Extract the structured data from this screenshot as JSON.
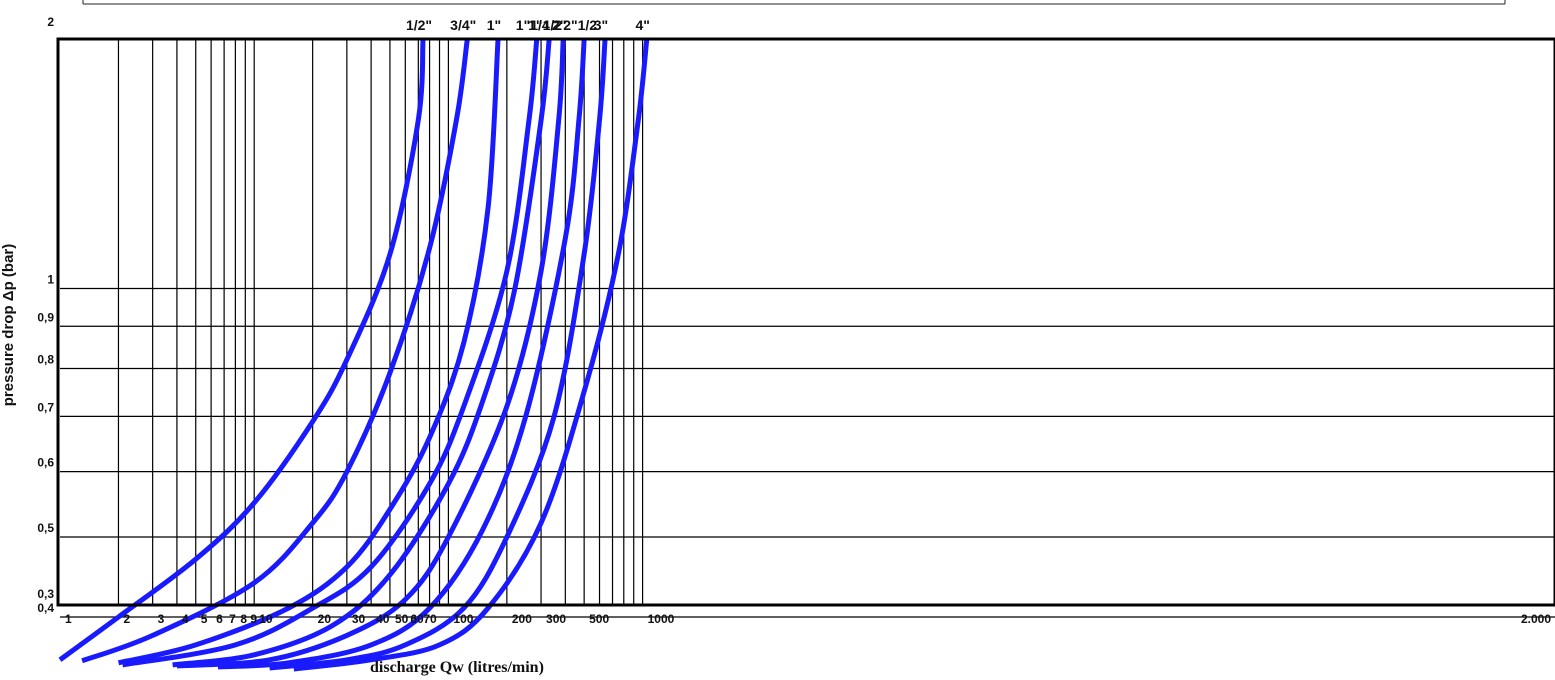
{
  "chart_data": {
    "type": "line",
    "xlabel": "discharge Qw (litres/min)",
    "ylabel": "pressure drop Δp (bar)",
    "x_scale": "log",
    "y_scale": "log",
    "xlim": [
      1,
      2000
    ],
    "ylim": [
      0.3,
      2
    ],
    "grid": true,
    "x_ticks": [
      {
        "v": 1,
        "label": "1"
      },
      {
        "v": 2,
        "label": "2"
      },
      {
        "v": 3,
        "label": "3"
      },
      {
        "v": 4,
        "label": "4"
      },
      {
        "v": 5,
        "label": "5"
      },
      {
        "v": 6,
        "label": "6"
      },
      {
        "v": 7,
        "label": "7"
      },
      {
        "v": 8,
        "label": "8"
      },
      {
        "v": 9,
        "label": "9"
      },
      {
        "v": 10,
        "label": "10"
      },
      {
        "v": 20,
        "label": "20"
      },
      {
        "v": 30,
        "label": "30"
      },
      {
        "v": 40,
        "label": "40"
      },
      {
        "v": 50,
        "label": "50"
      },
      {
        "v": 60,
        "label": "60"
      },
      {
        "v": 70,
        "label": "70"
      },
      {
        "v": 100,
        "label": "100"
      },
      {
        "v": 200,
        "label": "200"
      },
      {
        "v": 300,
        "label": "300"
      },
      {
        "v": 500,
        "label": "500"
      },
      {
        "v": 1000,
        "label": "1000"
      },
      {
        "v": 2000,
        "label": "2.000"
      }
    ],
    "x_gridlines": [
      2,
      3,
      4,
      5,
      6,
      7,
      8,
      9,
      10,
      20,
      30,
      40,
      50,
      60,
      70,
      80,
      90,
      100,
      200,
      300,
      400,
      500,
      600,
      700,
      800,
      900,
      1000
    ],
    "y_ticks": [
      {
        "v": 0.3,
        "label": "0,3"
      },
      {
        "v": 0.4,
        "label": "0,4"
      },
      {
        "v": 0.5,
        "label": "0,5"
      },
      {
        "v": 0.6,
        "label": "0,6"
      },
      {
        "v": 0.7,
        "label": "0,7"
      },
      {
        "v": 0.8,
        "label": "0,8"
      },
      {
        "v": 0.9,
        "label": "0,9"
      },
      {
        "v": 1,
        "label": "1"
      },
      {
        "v": 2,
        "label": "2"
      }
    ],
    "y_gridlines": [
      0.4,
      0.5,
      0.6,
      0.7,
      0.8,
      0.9,
      1
    ],
    "color": "#1a1aff",
    "series": [
      {
        "name": "1/2\"",
        "points": [
          [
            1,
            0.355
          ],
          [
            2,
            0.4
          ],
          [
            5,
            0.47
          ],
          [
            10,
            0.55
          ],
          [
            20,
            0.69
          ],
          [
            30,
            0.82
          ],
          [
            50,
            1.1
          ],
          [
            70,
            1.6
          ],
          [
            74,
            2.0
          ]
        ]
      },
      {
        "name": "3/4\"",
        "points": [
          [
            1.3,
            0.354
          ],
          [
            3,
            0.38
          ],
          [
            10,
            0.44
          ],
          [
            20,
            0.52
          ],
          [
            30,
            0.6
          ],
          [
            50,
            0.79
          ],
          [
            80,
            1.12
          ],
          [
            110,
            1.6
          ],
          [
            125,
            2.0
          ]
        ]
      },
      {
        "name": "1\"",
        "points": [
          [
            2,
            0.352
          ],
          [
            5,
            0.37
          ],
          [
            15,
            0.41
          ],
          [
            30,
            0.46
          ],
          [
            50,
            0.54
          ],
          [
            80,
            0.66
          ],
          [
            120,
            0.86
          ],
          [
            160,
            1.25
          ],
          [
            180,
            2.0
          ]
        ]
      },
      {
        "name": "1\"1/4",
        "points": [
          [
            2.1,
            0.35
          ],
          [
            8,
            0.37
          ],
          [
            20,
            0.41
          ],
          [
            40,
            0.46
          ],
          [
            80,
            0.58
          ],
          [
            120,
            0.72
          ],
          [
            200,
            1.05
          ],
          [
            260,
            1.6
          ],
          [
            285,
            2.0
          ]
        ]
      },
      {
        "name": "1\"1/2",
        "points": [
          [
            3.8,
            0.35
          ],
          [
            10,
            0.36
          ],
          [
            25,
            0.39
          ],
          [
            50,
            0.45
          ],
          [
            100,
            0.58
          ],
          [
            150,
            0.73
          ],
          [
            220,
            1.0
          ],
          [
            300,
            1.6
          ],
          [
            330,
            2.0
          ]
        ]
      },
      {
        "name": "2\"",
        "points": [
          [
            4,
            0.349
          ],
          [
            12,
            0.355
          ],
          [
            30,
            0.38
          ],
          [
            60,
            0.42
          ],
          [
            100,
            0.5
          ],
          [
            200,
            0.72
          ],
          [
            300,
            1.05
          ],
          [
            370,
            1.6
          ],
          [
            390,
            2.0
          ]
        ]
      },
      {
        "name": "2\"1/2",
        "points": [
          [
            6.5,
            0.348
          ],
          [
            15,
            0.352
          ],
          [
            40,
            0.37
          ],
          [
            80,
            0.41
          ],
          [
            150,
            0.51
          ],
          [
            250,
            0.7
          ],
          [
            400,
            1.15
          ],
          [
            470,
            1.6
          ],
          [
            500,
            2.0
          ]
        ]
      },
      {
        "name": "3\"",
        "points": [
          [
            12,
            0.347
          ],
          [
            30,
            0.355
          ],
          [
            60,
            0.37
          ],
          [
            120,
            0.41
          ],
          [
            200,
            0.5
          ],
          [
            350,
            0.7
          ],
          [
            500,
            1.1
          ],
          [
            600,
            1.6
          ],
          [
            640,
            2.0
          ]
        ]
      },
      {
        "name": "4\"",
        "points": [
          [
            16,
            0.346
          ],
          [
            40,
            0.355
          ],
          [
            90,
            0.37
          ],
          [
            160,
            0.41
          ],
          [
            300,
            0.52
          ],
          [
            500,
            0.75
          ],
          [
            750,
            1.1
          ],
          [
            950,
            1.6
          ],
          [
            1050,
            2.0
          ]
        ]
      }
    ]
  }
}
